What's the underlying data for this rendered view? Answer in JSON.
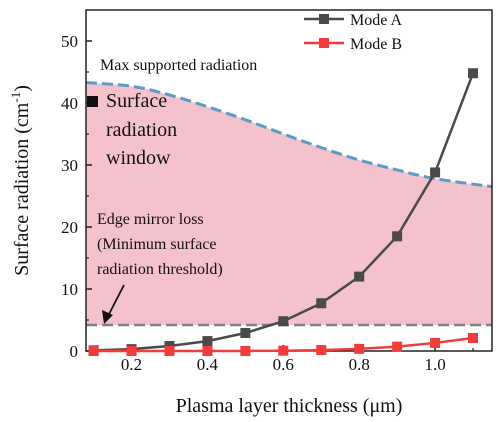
{
  "chart_data": {
    "type": "line",
    "xlabel": "Plasma layer thickness (μm)",
    "ylabel_main": "Surface radiation (cm",
    "ylabel_sup": "-1",
    "ylabel_end": ")",
    "xlim": [
      0.08,
      1.15
    ],
    "ylim": [
      0,
      55
    ],
    "xticks": [
      0.2,
      0.4,
      0.6,
      0.8,
      1.0
    ],
    "xtick_labels": [
      "0.2",
      "0.4",
      "0.6",
      "0.8",
      "1.0"
    ],
    "yticks": [
      0,
      10,
      20,
      30,
      40,
      50
    ],
    "ytick_labels": [
      "0",
      "10",
      "20",
      "30",
      "40",
      "50"
    ],
    "grid": false,
    "legend_position": "top-right",
    "series": [
      {
        "name": "Mode A",
        "color": "#4a4a4a",
        "marker": "square",
        "x": [
          0.1,
          0.2,
          0.3,
          0.4,
          0.5,
          0.6,
          0.7,
          0.8,
          0.9,
          1.0,
          1.1
        ],
        "values": [
          0.1,
          0.3,
          0.8,
          1.6,
          2.9,
          4.8,
          7.7,
          12.0,
          18.5,
          28.8,
          44.8
        ]
      },
      {
        "name": "Mode B",
        "color": "#f03c3c",
        "marker": "square",
        "x": [
          0.1,
          0.2,
          0.3,
          0.4,
          0.5,
          0.6,
          0.7,
          0.8,
          0.9,
          1.0,
          1.1
        ],
        "values": [
          0.0,
          0.0,
          0.0,
          0.0,
          0.0,
          0.05,
          0.15,
          0.35,
          0.7,
          1.3,
          2.1
        ]
      }
    ],
    "upper_boundary": {
      "color": "#5b9bc8",
      "x": [
        0.08,
        0.2,
        0.3,
        0.4,
        0.5,
        0.6,
        0.7,
        0.8,
        0.9,
        1.0,
        1.15
      ],
      "values": [
        43.3,
        42.7,
        41.3,
        39.4,
        37.3,
        35.0,
        32.8,
        30.8,
        29.2,
        27.8,
        26.5
      ]
    },
    "lower_threshold": {
      "color": "#808080",
      "value": 4.2
    },
    "fill_color": "#f4c2cc",
    "annotations": {
      "max_label": "Max supported radiation",
      "window_label": [
        "Surface",
        "radiation",
        "window"
      ],
      "loss_label": [
        "Edge mirror loss",
        "(Minimum surface",
        "radiation threshold)"
      ]
    }
  }
}
